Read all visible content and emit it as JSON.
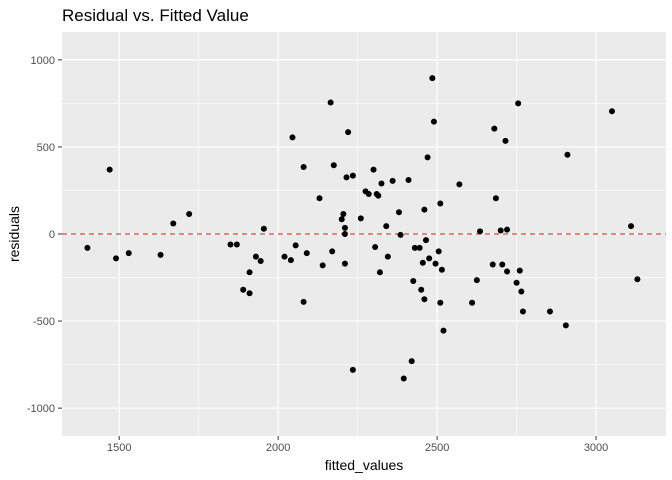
{
  "chart_data": {
    "type": "scatter",
    "title": "Residual vs. Fitted Value",
    "xlabel": "fitted_values",
    "ylabel": "residuals",
    "xlim": [
      1320,
      3220
    ],
    "ylim": [
      -1160,
      1160
    ],
    "xticks": [
      1500,
      2000,
      2500,
      3000
    ],
    "yticks": [
      -1000,
      -500,
      0,
      500,
      1000
    ],
    "xtick_labels": [
      "1500",
      "2000",
      "2500",
      "3000"
    ],
    "ytick_labels": [
      "-1000",
      "-500",
      "0",
      "500",
      "1000"
    ],
    "grid": true,
    "reference_line": {
      "y": 0,
      "style": "dashed",
      "color": "#d84a3f"
    },
    "colors": {
      "panel": "#ebebeb",
      "grid": "#ffffff",
      "point": "#000000"
    },
    "points": [
      [
        1400,
        -80
      ],
      [
        1470,
        370
      ],
      [
        1490,
        -140
      ],
      [
        1530,
        -110
      ],
      [
        1630,
        -120
      ],
      [
        1670,
        60
      ],
      [
        1720,
        115
      ],
      [
        1850,
        -60
      ],
      [
        1870,
        -60
      ],
      [
        1890,
        -320
      ],
      [
        1910,
        -220
      ],
      [
        1910,
        -340
      ],
      [
        1930,
        -130
      ],
      [
        1945,
        -155
      ],
      [
        1955,
        30
      ],
      [
        2020,
        -130
      ],
      [
        2040,
        -150
      ],
      [
        2045,
        555
      ],
      [
        2055,
        -65
      ],
      [
        2080,
        385
      ],
      [
        2080,
        -390
      ],
      [
        2090,
        -110
      ],
      [
        2130,
        205
      ],
      [
        2140,
        -180
      ],
      [
        2165,
        755
      ],
      [
        2170,
        -100
      ],
      [
        2175,
        395
      ],
      [
        2200,
        85
      ],
      [
        2205,
        115
      ],
      [
        2210,
        35
      ],
      [
        2210,
        0
      ],
      [
        2210,
        -170
      ],
      [
        2215,
        325
      ],
      [
        2220,
        585
      ],
      [
        2235,
        335
      ],
      [
        2235,
        -780
      ],
      [
        2260,
        90
      ],
      [
        2275,
        245
      ],
      [
        2285,
        230
      ],
      [
        2300,
        370
      ],
      [
        2305,
        -75
      ],
      [
        2310,
        230
      ],
      [
        2315,
        220
      ],
      [
        2320,
        -220
      ],
      [
        2325,
        290
      ],
      [
        2340,
        45
      ],
      [
        2345,
        -130
      ],
      [
        2360,
        305
      ],
      [
        2380,
        125
      ],
      [
        2385,
        -5
      ],
      [
        2395,
        -830
      ],
      [
        2410,
        310
      ],
      [
        2420,
        -730
      ],
      [
        2425,
        -270
      ],
      [
        2430,
        -80
      ],
      [
        2445,
        -80
      ],
      [
        2450,
        -320
      ],
      [
        2455,
        -165
      ],
      [
        2460,
        140
      ],
      [
        2460,
        -375
      ],
      [
        2465,
        -35
      ],
      [
        2470,
        440
      ],
      [
        2475,
        -140
      ],
      [
        2485,
        895
      ],
      [
        2490,
        645
      ],
      [
        2495,
        -170
      ],
      [
        2505,
        -100
      ],
      [
        2510,
        175
      ],
      [
        2510,
        -395
      ],
      [
        2515,
        -205
      ],
      [
        2520,
        -555
      ],
      [
        2570,
        285
      ],
      [
        2610,
        -395
      ],
      [
        2625,
        -265
      ],
      [
        2635,
        15
      ],
      [
        2675,
        -175
      ],
      [
        2680,
        605
      ],
      [
        2685,
        205
      ],
      [
        2700,
        20
      ],
      [
        2705,
        -175
      ],
      [
        2715,
        535
      ],
      [
        2720,
        25
      ],
      [
        2720,
        -215
      ],
      [
        2750,
        -280
      ],
      [
        2755,
        750
      ],
      [
        2760,
        -210
      ],
      [
        2765,
        -330
      ],
      [
        2770,
        -445
      ],
      [
        2855,
        -445
      ],
      [
        2905,
        -525
      ],
      [
        2910,
        455
      ],
      [
        3050,
        705
      ],
      [
        3110,
        45
      ],
      [
        3130,
        -260
      ]
    ]
  }
}
